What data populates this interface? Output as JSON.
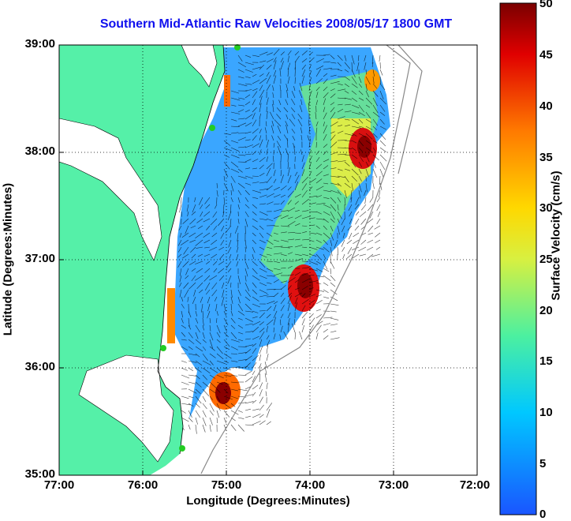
{
  "title": "Southern Mid-Atlantic Raw Velocities 2008/05/17 1800 GMT",
  "xlabel": "Longitude (Degrees:Minutes)",
  "ylabel": "Latitude (Degrees:Minutes)",
  "colorbar": {
    "label": "Surface Velocity (cm/s)",
    "ticks": [
      "50",
      "45",
      "40",
      "35",
      "30",
      "25",
      "20",
      "15",
      "10",
      "5",
      "0"
    ],
    "range": [
      0,
      50
    ],
    "colors": [
      "#0a5cff",
      "#00c8ff",
      "#4cf0a0",
      "#c8f040",
      "#ffd800",
      "#ff7a00",
      "#e00000",
      "#800000"
    ]
  },
  "x_ticks": [
    "77:00",
    "76:00",
    "75:00",
    "74:00",
    "73:00",
    "72:00"
  ],
  "y_ticks": [
    "39:00",
    "38:00",
    "37:00",
    "36:00",
    "35:00"
  ],
  "land_color": "#55f0a8",
  "station_color": "#22cc22",
  "grid": true
}
